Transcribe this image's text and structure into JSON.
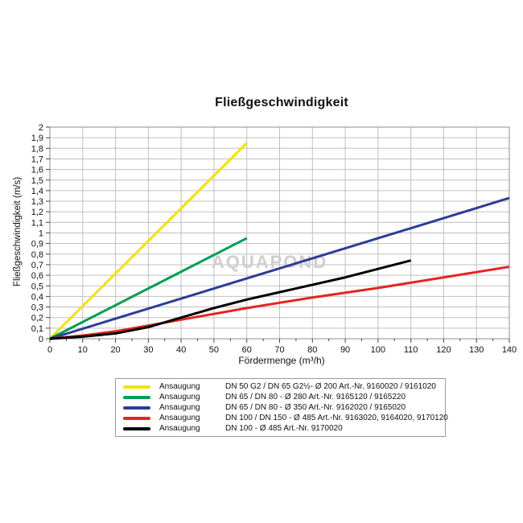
{
  "chart": {
    "title": "Fließgeschwindigkeit",
    "xlabel": "Fördermenge (m³/h)",
    "ylabel": "Fließgeschwindigkeit (m/s)",
    "watermark": "AQUAPOND"
  },
  "colors": {
    "grid": "#c0c0c0",
    "frame": "#8c8c8c",
    "tick": "#444444",
    "text": "#111111",
    "watermark": "#cfcfcf",
    "legend_border": "#9a9a9a"
  },
  "chart_data": {
    "type": "line",
    "title": "Fließgeschwindigkeit",
    "xlabel": "Fördermenge (m³/h)",
    "ylabel": "Fließgeschwindigkeit (m/s)",
    "xlim": [
      0,
      140
    ],
    "ylim": [
      0,
      2
    ],
    "x_tick_step": 10,
    "x_minor_tick_step": 5,
    "y_tick_step": 0.1,
    "grid": true,
    "decimal_separator": ",",
    "legend_position": "bottom",
    "series": [
      {
        "name": "Ansaugung DN 50 G2 / DN 65 G2½ - Ø 200",
        "color": "#f2e205",
        "points": [
          [
            0,
            0
          ],
          [
            60,
            1.85
          ]
        ]
      },
      {
        "name": "Ansaugung DN 65 / DN 80 - Ø 280",
        "color": "#009e53",
        "points": [
          [
            0,
            0
          ],
          [
            60,
            0.95
          ]
        ]
      },
      {
        "name": "Ansaugung DN 65 / DN 80 - Ø 350",
        "color": "#2b3d96",
        "points": [
          [
            0,
            0
          ],
          [
            140,
            1.33
          ]
        ]
      },
      {
        "name": "Ansaugung DN 100 / DN 150 - Ø 485",
        "color": "#e52421",
        "points": [
          [
            0,
            0
          ],
          [
            10,
            0.03
          ],
          [
            20,
            0.07
          ],
          [
            30,
            0.125
          ],
          [
            40,
            0.18
          ],
          [
            60,
            0.29
          ],
          [
            80,
            0.39
          ],
          [
            100,
            0.48
          ],
          [
            120,
            0.58
          ],
          [
            140,
            0.68
          ]
        ]
      },
      {
        "name": "Ansaugung DN 100 - Ø 485",
        "color": "#000000",
        "points": [
          [
            0,
            0
          ],
          [
            10,
            0.02
          ],
          [
            20,
            0.05
          ],
          [
            30,
            0.11
          ],
          [
            40,
            0.2
          ],
          [
            50,
            0.29
          ],
          [
            60,
            0.37
          ],
          [
            70,
            0.44
          ],
          [
            80,
            0.51
          ],
          [
            90,
            0.58
          ],
          [
            100,
            0.66
          ],
          [
            110,
            0.74
          ]
        ]
      }
    ]
  },
  "legend": {
    "rows": [
      {
        "label": "Ansaugung",
        "description": "DN 50 G2 / DN 65 G2½- Ø 200 Art.-Nr. 9160020 / 9161020"
      },
      {
        "label": "Ansaugung",
        "description": "DN 65 / DN 80 - Ø 280 Art.-Nr. 9165120 / 9165220"
      },
      {
        "label": "Ansaugung",
        "description": "DN 65 / DN 80 - Ø 350 Art.-Nr. 9162020 / 9165020"
      },
      {
        "label": "Ansaugung",
        "description": "DN 100 / DN 150 - Ø 485 Art.-Nr. 9163020, 9164020, 9170120"
      },
      {
        "label": "Ansaugung",
        "description": "DN 100 - Ø 485 Art.-Nr. 9170020"
      }
    ]
  }
}
